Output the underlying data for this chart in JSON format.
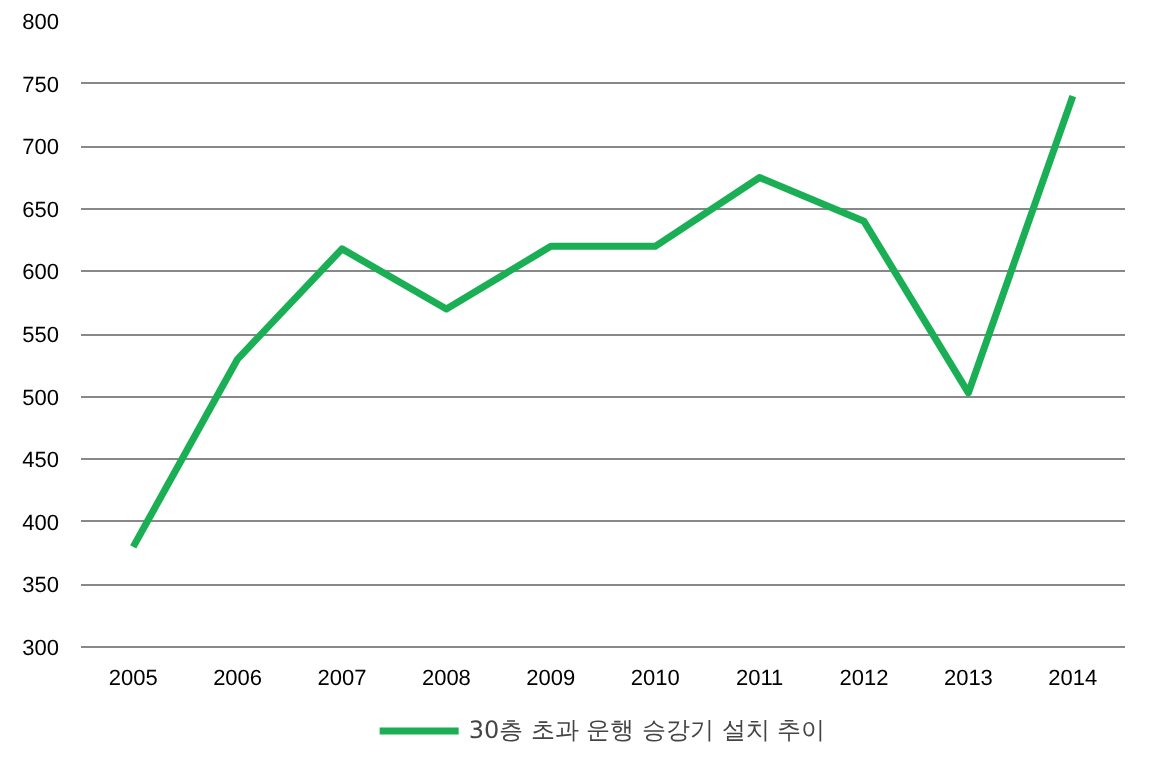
{
  "chart_data": {
    "type": "line",
    "categories": [
      "2005",
      "2006",
      "2007",
      "2008",
      "2009",
      "2010",
      "2011",
      "2012",
      "2013",
      "2014"
    ],
    "series": [
      {
        "name": "30층 초과 운행 승강기 설치 추이",
        "color": "#1aaf54",
        "values": [
          380,
          530,
          618,
          570,
          620,
          620,
          675,
          640,
          503,
          740
        ]
      }
    ],
    "ylim": [
      300,
      800
    ],
    "yticks": [
      300,
      350,
      400,
      450,
      500,
      550,
      600,
      650,
      700,
      750,
      800
    ],
    "grid": "y",
    "legend": "bottom",
    "marker": "none",
    "line_style": "solid"
  }
}
